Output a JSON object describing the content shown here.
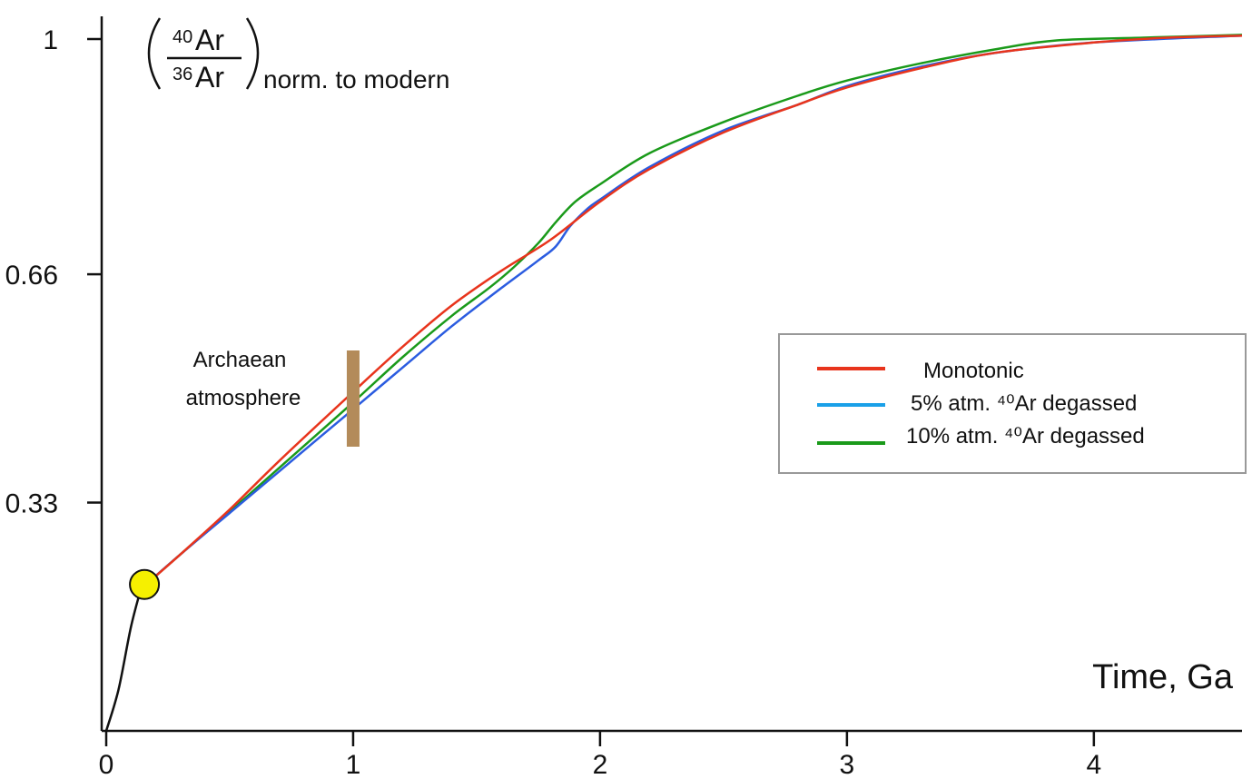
{
  "chart_data": {
    "type": "line",
    "xlabel": "Time, Ga",
    "ylabel": {
      "numerator_sup": "40",
      "numerator": "Ar",
      "denominator_sup": "36",
      "denominator": "Ar",
      "suffix": "norm. to modern"
    },
    "xlim": [
      0,
      4.6
    ],
    "ylim": [
      0,
      1.02
    ],
    "x_ticks": [
      "0",
      "1",
      "2",
      "3",
      "4"
    ],
    "x_tick_values": [
      0,
      1,
      2,
      3,
      4
    ],
    "y_ticks": [
      "0.33",
      "0.66",
      "1"
    ],
    "y_tick_values": [
      0.33,
      0.66,
      1.0
    ],
    "grid": false,
    "legend_position": "right-middle",
    "series": [
      {
        "name": "Monotonic",
        "color": "#e8341c",
        "points": [
          [
            0.14,
            0.205
          ],
          [
            0.3,
            0.255
          ],
          [
            0.5,
            0.32
          ],
          [
            0.7,
            0.39
          ],
          [
            1.0,
            0.49
          ],
          [
            1.2,
            0.555
          ],
          [
            1.4,
            0.615
          ],
          [
            1.6,
            0.665
          ],
          [
            1.8,
            0.71
          ],
          [
            2.0,
            0.765
          ],
          [
            2.2,
            0.812
          ],
          [
            2.5,
            0.865
          ],
          [
            2.8,
            0.905
          ],
          [
            3.0,
            0.93
          ],
          [
            3.3,
            0.958
          ],
          [
            3.6,
            0.98
          ],
          [
            4.0,
            0.995
          ],
          [
            4.3,
            1.002
          ],
          [
            4.6,
            1.005
          ]
        ]
      },
      {
        "name": "5% atm. ⁴⁰Ar degassed",
        "color": "#2b5ce0",
        "legend_color": "#1aa0e8",
        "points": [
          [
            0.14,
            0.205
          ],
          [
            0.3,
            0.255
          ],
          [
            0.5,
            0.315
          ],
          [
            0.7,
            0.375
          ],
          [
            1.0,
            0.465
          ],
          [
            1.2,
            0.525
          ],
          [
            1.4,
            0.585
          ],
          [
            1.6,
            0.64
          ],
          [
            1.75,
            0.68
          ],
          [
            1.82,
            0.7
          ],
          [
            1.88,
            0.73
          ],
          [
            1.95,
            0.755
          ],
          [
            2.0,
            0.768
          ],
          [
            2.2,
            0.815
          ],
          [
            2.5,
            0.868
          ],
          [
            2.8,
            0.905
          ],
          [
            3.0,
            0.932
          ],
          [
            3.3,
            0.96
          ],
          [
            3.6,
            0.98
          ],
          [
            4.0,
            0.995
          ],
          [
            4.6,
            1.005
          ]
        ]
      },
      {
        "name": "10% atm. ⁴⁰Ar degassed",
        "color": "#1a9a1a",
        "points": [
          [
            0.14,
            0.205
          ],
          [
            0.3,
            0.255
          ],
          [
            0.5,
            0.317
          ],
          [
            0.7,
            0.38
          ],
          [
            1.0,
            0.475
          ],
          [
            1.2,
            0.54
          ],
          [
            1.4,
            0.6
          ],
          [
            1.55,
            0.64
          ],
          [
            1.65,
            0.67
          ],
          [
            1.75,
            0.705
          ],
          [
            1.82,
            0.735
          ],
          [
            1.9,
            0.765
          ],
          [
            2.0,
            0.79
          ],
          [
            2.2,
            0.835
          ],
          [
            2.5,
            0.88
          ],
          [
            2.8,
            0.918
          ],
          [
            3.0,
            0.94
          ],
          [
            3.3,
            0.965
          ],
          [
            3.6,
            0.985
          ],
          [
            3.85,
            0.998
          ],
          [
            4.2,
            1.002
          ],
          [
            4.6,
            1.006
          ]
        ]
      }
    ],
    "initial_segment": {
      "color": "#111111",
      "points": [
        [
          0.0,
          0.0
        ],
        [
          0.05,
          0.06
        ],
        [
          0.1,
          0.15
        ],
        [
          0.14,
          0.205
        ]
      ]
    },
    "start_marker": {
      "x": 0.14,
      "y": 0.205,
      "color": "#f6f000"
    },
    "annotation": {
      "lines": [
        "Archaean",
        "atmosphere"
      ],
      "bar_x": 1.0,
      "bar_y_range": [
        0.43,
        0.57
      ],
      "bar_color": "#b38b5a"
    }
  }
}
